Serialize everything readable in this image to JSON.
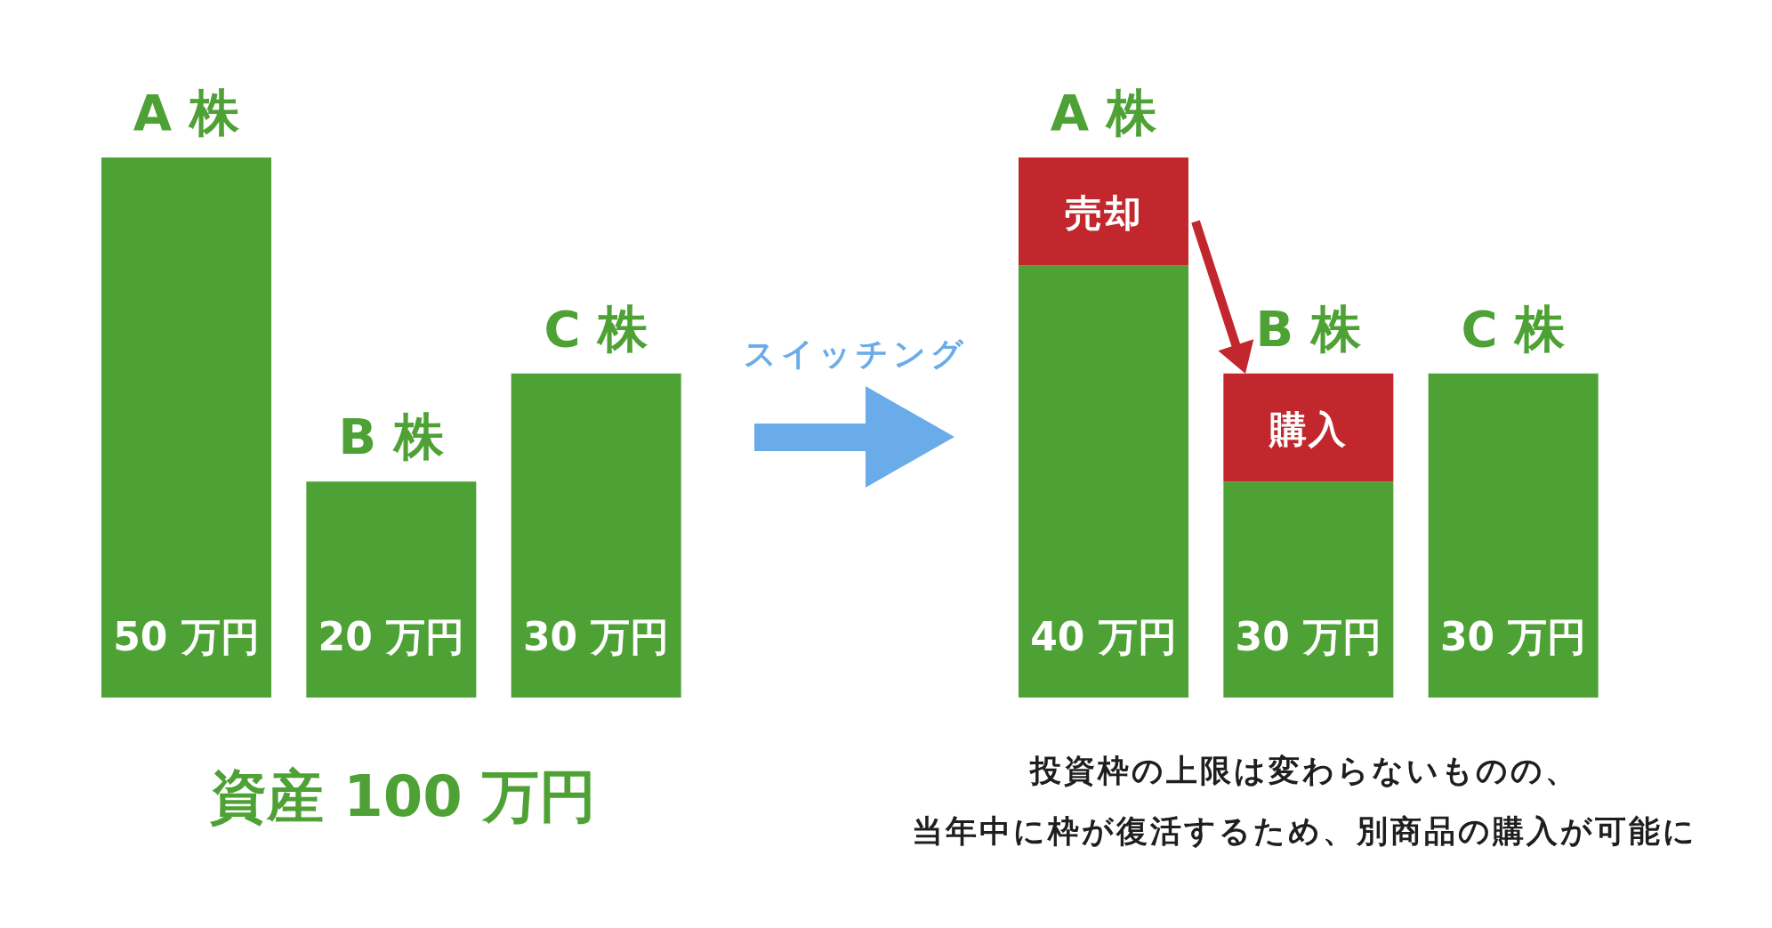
{
  "chart_data": [
    {
      "type": "bar",
      "categories": [
        "A 株",
        "B 株",
        "C 株"
      ],
      "values": [
        50,
        20,
        30
      ],
      "color": "#4ea135",
      "value_labels": [
        "50 万円",
        "20 万円",
        "30 万円"
      ],
      "annotations": [
        "資産 100 万円"
      ]
    },
    {
      "type": "bar",
      "stacked": true,
      "categories": [
        "A 株",
        "B 株",
        "C 株"
      ],
      "series": [
        {
          "color": "#4ea135",
          "values": [
            40,
            20,
            30
          ],
          "value_labels": [
            "40 万円",
            null,
            "30 万円"
          ]
        },
        {
          "color": "#c1272d",
          "values": [
            10,
            10,
            null
          ],
          "value_labels": [
            "売却",
            "購入",
            null
          ]
        }
      ],
      "totals": [
        null,
        "30 万円",
        null
      ],
      "annotations": [
        "スイッチング",
        "投資枠の上限は変わらないものの、",
        "当年中に枠が復活するため、別商品の購入が可能に"
      ]
    }
  ]
}
